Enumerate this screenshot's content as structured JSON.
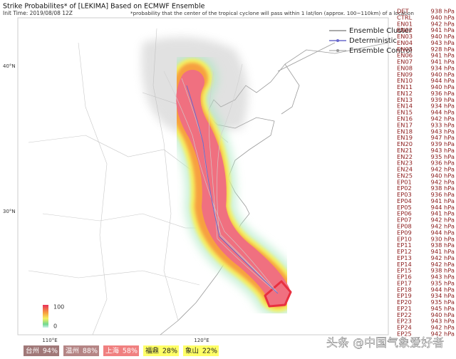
{
  "header": {
    "title": "Strike Probabilites* of [LEKIMA] Based on ECMWF Ensemble",
    "init_time": "Init Time: 2019/08/08 12Z",
    "note": "*probability that the center of the tropical cyclone will pass within 1 lat/lon (approx. 100~110km) of a location"
  },
  "legend": [
    "Ensemble Cluster",
    "Deterministic",
    "Ensemble Control"
  ],
  "axes": {
    "lat": [
      "40°N",
      "30°N"
    ],
    "lon": [
      "110°E",
      "120°E"
    ]
  },
  "colorbar": {
    "max": "100",
    "min": "0"
  },
  "members": [
    {
      "id": "DET",
      "pressure": "938 hPa"
    },
    {
      "id": "CTRL",
      "pressure": "940 hPa"
    },
    {
      "id": "EN01",
      "pressure": "942 hPa"
    },
    {
      "id": "EN02",
      "pressure": "941 hPa"
    },
    {
      "id": "EN03",
      "pressure": "940 hPa"
    },
    {
      "id": "EN04",
      "pressure": "943 hPa"
    },
    {
      "id": "EN05",
      "pressure": "928 hPa"
    },
    {
      "id": "EN06",
      "pressure": "941 hPa"
    },
    {
      "id": "EN07",
      "pressure": "941 hPa"
    },
    {
      "id": "EN08",
      "pressure": "934 hPa"
    },
    {
      "id": "EN09",
      "pressure": "940 hPa"
    },
    {
      "id": "EN10",
      "pressure": "944 hPa"
    },
    {
      "id": "EN11",
      "pressure": "940 hPa"
    },
    {
      "id": "EN12",
      "pressure": "936 hPa"
    },
    {
      "id": "EN13",
      "pressure": "939 hPa"
    },
    {
      "id": "EN14",
      "pressure": "934 hPa"
    },
    {
      "id": "EN15",
      "pressure": "944 hPa"
    },
    {
      "id": "EN16",
      "pressure": "942 hPa"
    },
    {
      "id": "EN17",
      "pressure": "933 hPa"
    },
    {
      "id": "EN18",
      "pressure": "943 hPa"
    },
    {
      "id": "EN19",
      "pressure": "947 hPa"
    },
    {
      "id": "EN20",
      "pressure": "939 hPa"
    },
    {
      "id": "EN21",
      "pressure": "943 hPa"
    },
    {
      "id": "EN22",
      "pressure": "935 hPa"
    },
    {
      "id": "EN23",
      "pressure": "936 hPa"
    },
    {
      "id": "EN24",
      "pressure": "942 hPa"
    },
    {
      "id": "EN25",
      "pressure": "940 hPa"
    },
    {
      "id": "EP01",
      "pressure": "942 hPa"
    },
    {
      "id": "EP02",
      "pressure": "938 hPa"
    },
    {
      "id": "EP03",
      "pressure": "936 hPa"
    },
    {
      "id": "EP04",
      "pressure": "941 hPa"
    },
    {
      "id": "EP05",
      "pressure": "944 hPa"
    },
    {
      "id": "EP06",
      "pressure": "941 hPa"
    },
    {
      "id": "EP07",
      "pressure": "942 hPa"
    },
    {
      "id": "EP08",
      "pressure": "942 hPa"
    },
    {
      "id": "EP09",
      "pressure": "944 hPa"
    },
    {
      "id": "EP10",
      "pressure": "930 hPa"
    },
    {
      "id": "EP11",
      "pressure": "938 hPa"
    },
    {
      "id": "EP12",
      "pressure": "941 hPa"
    },
    {
      "id": "EP13",
      "pressure": "942 hPa"
    },
    {
      "id": "EP14",
      "pressure": "942 hPa"
    },
    {
      "id": "EP15",
      "pressure": "938 hPa"
    },
    {
      "id": "EP16",
      "pressure": "943 hPa"
    },
    {
      "id": "EP17",
      "pressure": "935 hPa"
    },
    {
      "id": "EP18",
      "pressure": "944 hPa"
    },
    {
      "id": "EP19",
      "pressure": "934 hPa"
    },
    {
      "id": "EP20",
      "pressure": "935 hPa"
    },
    {
      "id": "EP21",
      "pressure": "945 hPa"
    },
    {
      "id": "EP22",
      "pressure": "940 hPa"
    },
    {
      "id": "EP23",
      "pressure": "943 hPa"
    },
    {
      "id": "EP24",
      "pressure": "942 hPa"
    },
    {
      "id": "EP25",
      "pressure": "942 hPa"
    }
  ],
  "stations": [
    {
      "name": "台州",
      "prob": "94%"
    },
    {
      "name": "温州",
      "prob": "88%"
    },
    {
      "name": "上海",
      "prob": "58%"
    },
    {
      "name": "福鼎",
      "prob": "28%"
    },
    {
      "name": "象山",
      "prob": "22%"
    }
  ],
  "watermark": "头条 @中国气象爱好者"
}
